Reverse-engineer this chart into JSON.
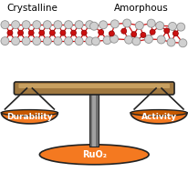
{
  "title_left": "Crystalline",
  "title_right": "Amorphous",
  "label_left": "Durability",
  "label_right": "Activity",
  "label_base": "RuO₂",
  "orange_color": "#F47920",
  "orange_dark": "#C85A00",
  "beam_color": "#A07840",
  "beam_top_color": "#C8A060",
  "pole_color": "#707070",
  "pole_dark": "#505050",
  "outline_color": "#222222",
  "text_color": "white",
  "crystal_red": "#CC1010",
  "crystal_gray": "#D0D0D0",
  "bg_color": "white",
  "fig_width": 2.06,
  "fig_height": 1.89,
  "dpi": 100
}
